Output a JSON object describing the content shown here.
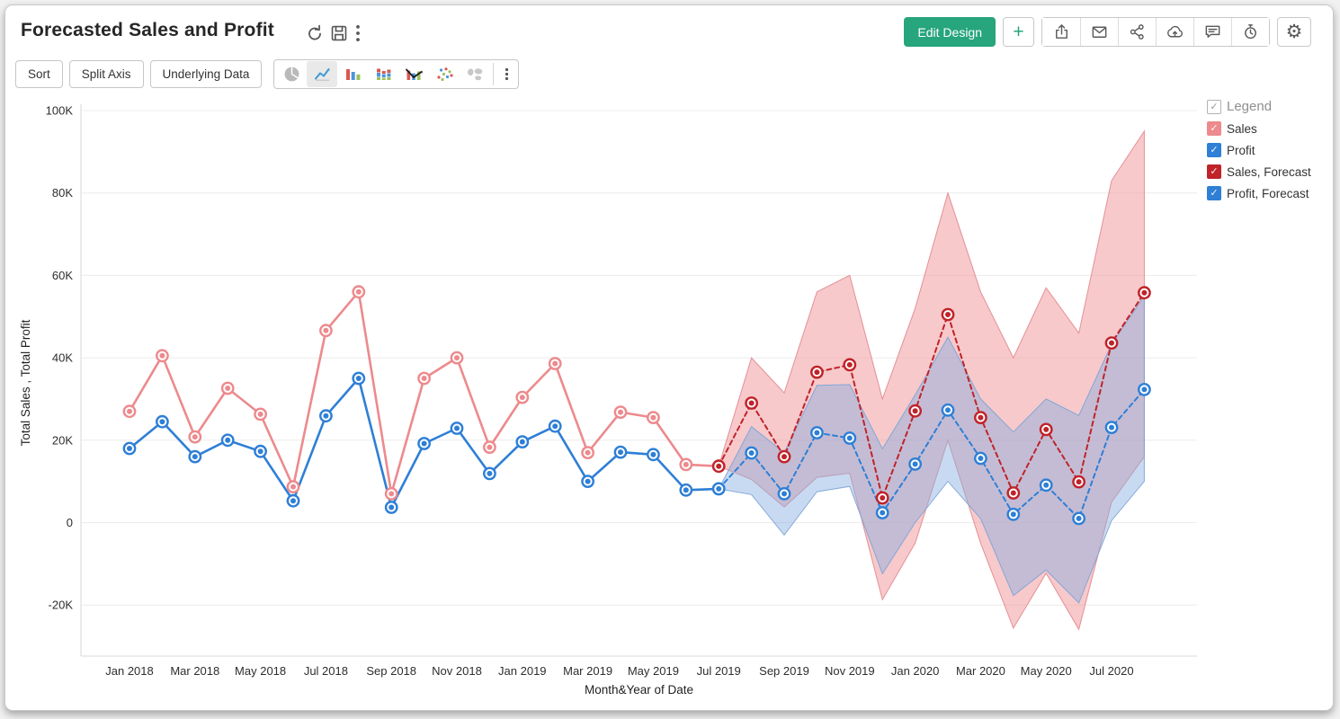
{
  "header": {
    "title": "Forecasted Sales and Profit",
    "accent_color": "#27a57c",
    "title_icons": [
      "refresh-icon",
      "save-icon",
      "more-options-icon"
    ],
    "actions": {
      "edit_design_label": "Edit Design",
      "add_label": "+",
      "settings_glyph": "⚙",
      "icon_buttons": [
        "export-icon",
        "email-icon",
        "share-icon",
        "cloud-upload-icon",
        "comment-icon",
        "reminder-icon",
        "settings-icon"
      ]
    }
  },
  "toolbar": {
    "buttons": [
      {
        "label": "Sort"
      },
      {
        "label": "Split Axis"
      },
      {
        "label": "Underlying Data"
      }
    ],
    "chart_types": [
      {
        "name": "pie-chart-icon",
        "selected": false
      },
      {
        "name": "line-chart-icon",
        "selected": true
      },
      {
        "name": "bar-chart-icon",
        "selected": false
      },
      {
        "name": "stacked-bar-chart-icon",
        "selected": false
      },
      {
        "name": "bar-line-combo-icon",
        "selected": false
      },
      {
        "name": "scatter-chart-icon",
        "selected": false
      },
      {
        "name": "map-chart-icon",
        "selected": false
      },
      {
        "name": "more-chart-types-icon",
        "selected": false
      }
    ]
  },
  "legend": {
    "title": "Legend",
    "items": [
      {
        "label": "Sales",
        "color": "#ED8A8D"
      },
      {
        "label": "Profit",
        "color": "#2E7FD6"
      },
      {
        "label": "Sales, Forecast",
        "color": "#C0232A"
      },
      {
        "label": "Profit, Forecast",
        "color": "#2E7FD6"
      }
    ]
  },
  "chart_data": {
    "type": "line",
    "unit": "K (thousands)",
    "grid": true,
    "months": [
      "Jan 2018",
      "Feb 2018",
      "Mar 2018",
      "Apr 2018",
      "May 2018",
      "Jun 2018",
      "Jul 2018",
      "Aug 2018",
      "Sep 2018",
      "Oct 2018",
      "Nov 2018",
      "Dec 2018",
      "Jan 2019",
      "Feb 2019",
      "Mar 2019",
      "Apr 2019",
      "May 2019",
      "Jun 2019",
      "Jul 2019",
      "Aug 2019",
      "Sep 2019",
      "Oct 2019",
      "Nov 2019",
      "Dec 2019",
      "Jan 2020",
      "Feb 2020",
      "Mar 2020",
      "Apr 2020",
      "May 2020",
      "Jun 2020",
      "Jul 2020",
      "Aug 2020"
    ],
    "x_axis": {
      "title": "Month&Year of Date",
      "tick_labels": [
        "Jan 2018",
        "Mar 2018",
        "May 2018",
        "Jul 2018",
        "Sep 2018",
        "Nov 2018",
        "Jan 2019",
        "Mar 2019",
        "May 2019",
        "Jul 2019",
        "Sep 2019",
        "Nov 2019",
        "Jan 2020",
        "Mar 2020",
        "May 2020",
        "Jul 2020"
      ]
    },
    "y_axis": {
      "title": "Total Sales , Total Profit",
      "ticks": [
        {
          "value": 100,
          "label": "100K"
        },
        {
          "value": 80,
          "label": "80K"
        },
        {
          "value": 60,
          "label": "60K"
        },
        {
          "value": 40,
          "label": "40K"
        },
        {
          "value": 20,
          "label": "20K"
        },
        {
          "value": 0,
          "label": "0"
        },
        {
          "value": -20,
          "label": "-20K"
        }
      ]
    },
    "series": [
      {
        "name": "Sales",
        "color": "#ED8A8D",
        "line_style": "solid",
        "start_index": 0,
        "values": [
          27.0,
          40.5,
          20.8,
          32.6,
          26.3,
          8.7,
          46.6,
          56.0,
          7.0,
          35.0,
          40.0,
          18.3,
          30.4,
          38.6,
          17.0,
          26.8,
          25.5,
          14.1,
          13.7
        ]
      },
      {
        "name": "Profit",
        "color": "#2E7FD6",
        "line_style": "solid",
        "start_index": 0,
        "values": [
          18.0,
          24.5,
          16.0,
          20.0,
          17.3,
          5.3,
          25.9,
          35.0,
          3.7,
          19.2,
          22.9,
          11.9,
          19.6,
          23.4,
          10.0,
          17.1,
          16.5,
          7.9,
          8.2
        ]
      },
      {
        "name": "Sales, Forecast",
        "color": "#C0232A",
        "line_style": "dashed",
        "start_index": 18,
        "values": [
          13.7,
          29.0,
          16.0,
          36.5,
          38.3,
          6.0,
          27.1,
          50.5,
          25.5,
          7.2,
          22.6,
          9.9,
          43.6,
          55.8
        ]
      },
      {
        "name": "Profit, Forecast",
        "color": "#2E7FD6",
        "line_style": "dashed",
        "start_index": 18,
        "values": [
          8.2,
          16.9,
          7.0,
          21.8,
          20.5,
          2.4,
          14.2,
          27.3,
          15.6,
          2.0,
          9.1,
          1.0,
          23.1,
          32.3
        ]
      }
    ],
    "bands": [
      {
        "name": "sales-forecast-band",
        "fill": "#F09498",
        "fill_opacity": 0.5,
        "edge": "#E2868D",
        "start_index": 18,
        "upper": [
          13.7,
          40.0,
          31.5,
          56.0,
          60.0,
          30.0,
          52.0,
          80.0,
          56.0,
          40.0,
          57.0,
          46.0,
          83.0,
          95.0
        ],
        "lower": [
          13.7,
          10.5,
          3.8,
          11.0,
          12.0,
          -18.7,
          -5.0,
          20.0,
          -5.0,
          -25.6,
          -12.3,
          -25.9,
          5.0,
          16.0
        ]
      },
      {
        "name": "profit-forecast-band",
        "fill": "#86ADE0",
        "fill_opacity": 0.45,
        "edge": "#7BA3D6",
        "start_index": 18,
        "upper": [
          8.2,
          23.3,
          17.0,
          33.3,
          33.5,
          17.9,
          31.0,
          45.0,
          30.0,
          22.0,
          30.0,
          26.0,
          43.3,
          55.0
        ],
        "lower": [
          8.2,
          6.8,
          -3.0,
          7.5,
          8.8,
          -12.4,
          0.0,
          10.0,
          1.0,
          -17.7,
          -11.5,
          -19.5,
          0.5,
          10.0
        ]
      }
    ]
  }
}
